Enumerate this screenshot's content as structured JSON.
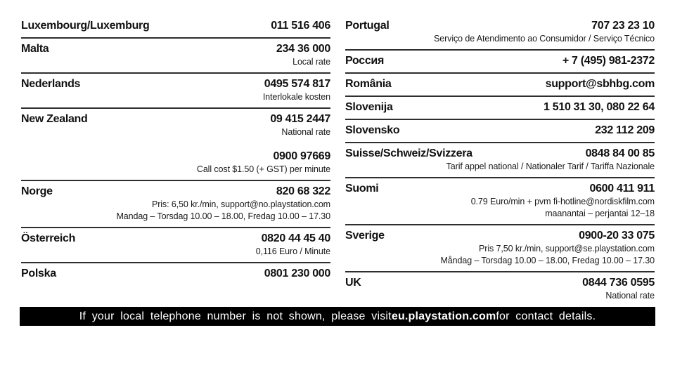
{
  "document": {
    "type": "support-contact-directory",
    "columns": {
      "left": {
        "entries": [
          {
            "country": "Luxembourg/Luxemburg",
            "value": "011 516 406"
          },
          {
            "country": "Malta",
            "value": "234 36 000",
            "notes": [
              "Local rate"
            ]
          },
          {
            "country": "Nederlands",
            "value": "0495 574 817",
            "notes": [
              "Interlokale kosten"
            ]
          },
          {
            "country": "New Zealand",
            "value": "09 415 2447",
            "notes": [
              "National rate"
            ],
            "value2": "0900 97669",
            "notes2": [
              "Call cost $1.50 (+ GST) per minute"
            ]
          },
          {
            "country": "Norge",
            "value": "820 68 322",
            "notes": [
              "Pris: 6,50 kr./min, support@no.playstation.com",
              "Mandag – Torsdag 10.00 – 18.00, Fredag 10.00 – 17.30"
            ]
          },
          {
            "country": "Österreich",
            "value": "0820 44 45 40",
            "notes": [
              "0,116 Euro / Minute"
            ]
          },
          {
            "country": "Polska",
            "value": "0801 230 000"
          }
        ]
      },
      "right": {
        "entries": [
          {
            "country": "Portugal",
            "value": "707 23 23 10",
            "notes": [
              "Serviço de Atendimento ao Consumidor / Serviço Técnico"
            ]
          },
          {
            "country": "Россия",
            "value": "+ 7 (495) 981-2372"
          },
          {
            "country": "România",
            "value": "support@sbhbg.com"
          },
          {
            "country": "Slovenija",
            "value": "1 510 31 30, 080 22 64"
          },
          {
            "country": "Slovensko",
            "value": "232 112 209"
          },
          {
            "country": "Suisse/Schweiz/Svizzera",
            "value": "0848 84 00 85",
            "notes": [
              "Tarif appel national / Nationaler Tarif / Tariffa Nazionale"
            ]
          },
          {
            "country": "Suomi",
            "value": "0600 411 911",
            "notes": [
              "0.79 Euro/min + pvm fi-hotline@nordiskfilm.com",
              "maanantai – perjantai 12–18"
            ]
          },
          {
            "country": "Sverige",
            "value": "0900-20 33 075",
            "notes": [
              "Pris 7,50 kr./min, support@se.playstation.com",
              "Måndag – Torsdag 10.00 – 18.00, Fredag 10.00 – 17.30"
            ]
          },
          {
            "country": "UK",
            "value": "0844 736 0595",
            "notes": [
              "National rate"
            ]
          }
        ]
      }
    },
    "footer": {
      "text_before": "If your local telephone number is not shown, please visit ",
      "link_text": "eu.playstation.com",
      "text_after": " for contact details."
    }
  },
  "colors": {
    "page_background": "#ffffff",
    "text": "#111111",
    "divider_rule": "#2e2e2e",
    "footer_background": "#000000",
    "footer_text": "#ffffff"
  }
}
